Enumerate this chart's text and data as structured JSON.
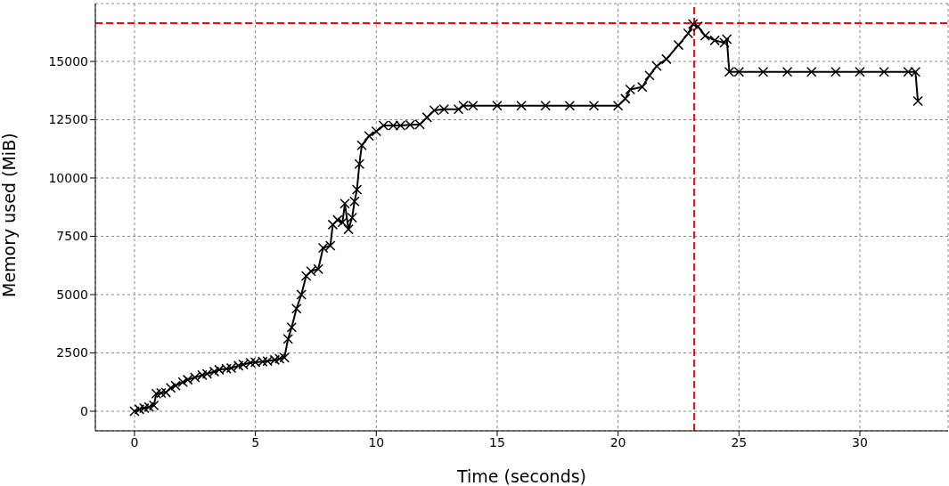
{
  "chart_data": {
    "type": "line",
    "xlabel": "Time (seconds)",
    "ylabel": "Memory used (MiB)",
    "series": [
      {
        "color": "#000000",
        "x": [
          0,
          0.2,
          0.4,
          0.6,
          0.8,
          0.9,
          1.1,
          1.3,
          1.5,
          1.7,
          2,
          2.2,
          2.5,
          2.8,
          3,
          3.3,
          3.5,
          3.8,
          4,
          4.3,
          4.5,
          4.8,
          5,
          5.3,
          5.5,
          5.8,
          6,
          6.2,
          6.35,
          6.5,
          6.7,
          6.9,
          7.1,
          7.3,
          7.6,
          7.8,
          8.1,
          8.2,
          8.4,
          8.6,
          8.7,
          8.85,
          9,
          9.1,
          9.2,
          9.3,
          9.4,
          9.7,
          10,
          10.3,
          10.7,
          11,
          11.4,
          11.8,
          12.1,
          12.4,
          12.8,
          13.4,
          13.6,
          14,
          15,
          16,
          17,
          18,
          19,
          20,
          20.3,
          20.5,
          21,
          21.3,
          21.6,
          22,
          22.5,
          22.9,
          23.1,
          23.3,
          23.6,
          24,
          24.4,
          24.5,
          24.6,
          25,
          26,
          27,
          28,
          29,
          30,
          31,
          32,
          32.3,
          32.4
        ],
        "values": [
          0,
          80,
          130,
          180,
          250,
          750,
          780,
          800,
          1000,
          1100,
          1250,
          1350,
          1450,
          1550,
          1600,
          1700,
          1780,
          1820,
          1850,
          1950,
          2000,
          2080,
          2100,
          2130,
          2150,
          2200,
          2250,
          2300,
          3100,
          3600,
          4400,
          5000,
          5800,
          6000,
          6100,
          7000,
          7100,
          8000,
          8200,
          8100,
          8900,
          7800,
          8300,
          9000,
          9500,
          10600,
          11400,
          11800,
          12000,
          12250,
          12250,
          12250,
          12280,
          12300,
          12600,
          12900,
          12950,
          12950,
          13100,
          13100,
          13100,
          13100,
          13100,
          13100,
          13100,
          13100,
          13400,
          13800,
          13900,
          14400,
          14800,
          15100,
          15700,
          16200,
          16600,
          16500,
          16100,
          15900,
          15800,
          15950,
          14550,
          14550,
          14550,
          14550,
          14550,
          14550,
          14550,
          14550,
          14550,
          14550,
          13300
        ]
      }
    ],
    "xlim": [
      -1.62,
      33.65
    ],
    "ylim": [
      -840,
      17480
    ],
    "xticks": [
      0,
      5,
      10,
      15,
      20,
      25,
      30
    ],
    "yticks": [
      0,
      2500,
      5000,
      7500,
      10000,
      12500,
      15000
    ],
    "grid": true,
    "marker": "cross",
    "line_style": "solid",
    "legend": false,
    "ref_lines": [
      {
        "axis": "y",
        "value": 16640,
        "color": "#ff0000",
        "line_style": "dashed"
      },
      {
        "axis": "x",
        "value": 23.15,
        "color": "#ff0000",
        "line_style": "dashed"
      }
    ]
  }
}
